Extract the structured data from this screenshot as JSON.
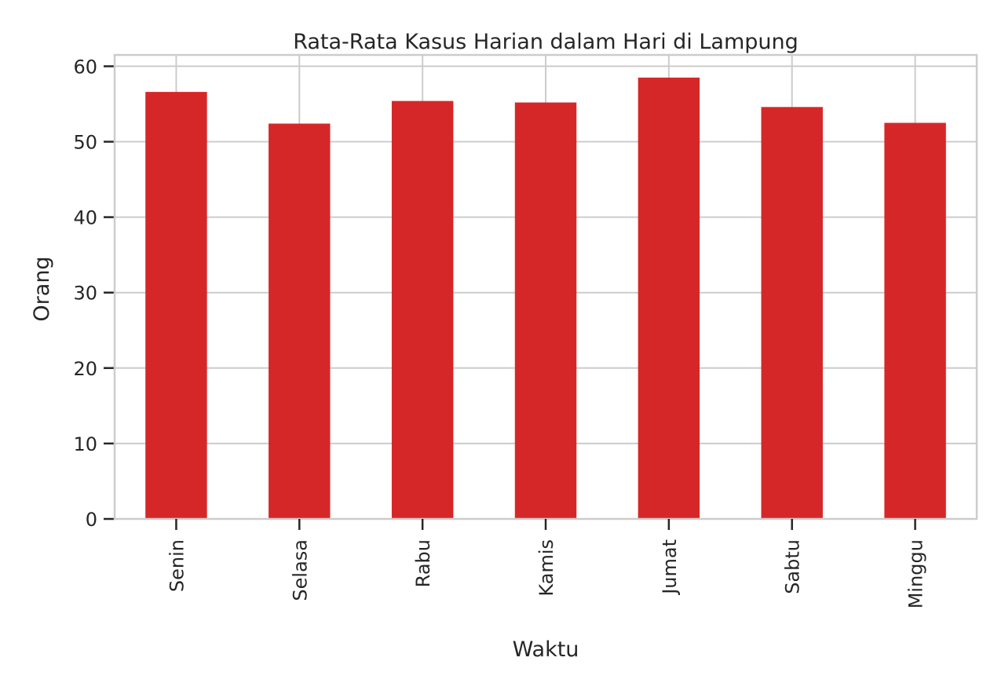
{
  "chart_data": {
    "type": "bar",
    "title": "Rata-Rata Kasus Harian dalam Hari di Lampung",
    "xlabel": "Waktu",
    "ylabel": "Orang",
    "categories": [
      "Senin",
      "Selasa",
      "Rabu",
      "Kamis",
      "Jumat",
      "Sabtu",
      "Minggu"
    ],
    "values": [
      56.6,
      52.4,
      55.4,
      55.2,
      58.5,
      54.6,
      52.5
    ],
    "ylim": [
      0,
      61.5
    ],
    "yticks": [
      0,
      10,
      20,
      30,
      40,
      50,
      60
    ],
    "grid": true,
    "legend": "none",
    "colors": {
      "bar": "#d62728",
      "grid": "#cccccc",
      "axis": "#cccccc",
      "tick": "#262626"
    }
  }
}
